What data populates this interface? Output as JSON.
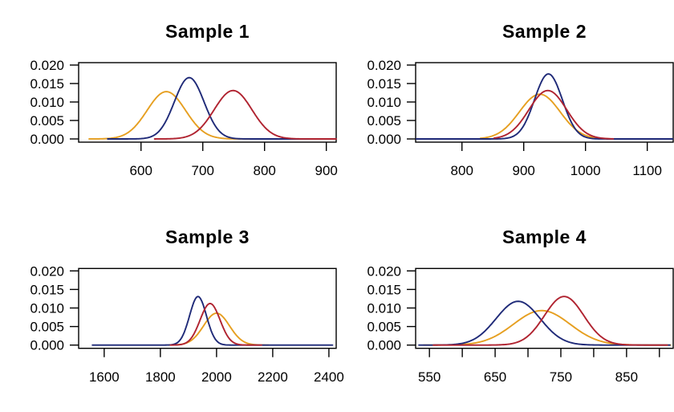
{
  "figure": {
    "background": "#ffffff",
    "grid": "2x2",
    "legend": "none"
  },
  "colors": {
    "navy": "#1F2A78",
    "red": "#B02330",
    "orange": "#E69F20",
    "axis": "#000000"
  },
  "chart_data": [
    {
      "type": "line",
      "title": "Sample 1",
      "xlabel": "",
      "ylabel": "",
      "xlim": [
        499,
        916
      ],
      "ylim": [
        0,
        0.02
      ],
      "grid": false,
      "xticks": [
        600,
        700,
        800,
        900
      ],
      "xtick_labels": [
        "600",
        "700",
        "800",
        "900"
      ],
      "yticks": [
        0,
        0.005,
        0.01,
        0.015,
        0.02
      ],
      "ytick_labels": [
        "0.000",
        "0.005",
        "0.010",
        "0.015",
        "0.020"
      ],
      "series": [
        {
          "name": "orange",
          "color": "#E69F20",
          "mean": 641,
          "sd": 31,
          "peak": 0.0128,
          "range": [
            516,
            812
          ]
        },
        {
          "name": "navy",
          "color": "#1F2A78",
          "mean": 678,
          "sd": 24,
          "peak": 0.0166,
          "range": [
            546,
            908
          ]
        },
        {
          "name": "red",
          "color": "#B02330",
          "mean": 749,
          "sd": 30.5,
          "peak": 0.0131,
          "range": [
            622,
            916
          ]
        }
      ]
    },
    {
      "type": "line",
      "title": "Sample 2",
      "xlabel": "",
      "ylabel": "",
      "xlim": [
        725,
        1142
      ],
      "ylim": [
        0,
        0.02
      ],
      "grid": false,
      "xticks": [
        800,
        900,
        1000,
        1100
      ],
      "xtick_labels": [
        "800",
        "900",
        "1000",
        "1100"
      ],
      "yticks": [
        0,
        0.005,
        0.01,
        0.015,
        0.02
      ],
      "ytick_labels": [
        "0.000",
        "0.005",
        "0.010",
        "0.015",
        "0.020"
      ],
      "series": [
        {
          "name": "orange",
          "color": "#E69F20",
          "mean": 926,
          "sd": 33,
          "peak": 0.0121,
          "range": [
            830,
            1038
          ]
        },
        {
          "name": "navy",
          "color": "#1F2A78",
          "mean": 940,
          "sd": 22.5,
          "peak": 0.0176,
          "range": [
            726,
            1141
          ]
        },
        {
          "name": "red",
          "color": "#B02330",
          "mean": 939,
          "sd": 30.5,
          "peak": 0.0131,
          "range": [
            852,
            1045
          ]
        }
      ]
    },
    {
      "type": "line",
      "title": "Sample 3",
      "xlabel": "",
      "ylabel": "",
      "xlim": [
        1509,
        2426
      ],
      "ylim": [
        0,
        0.02
      ],
      "grid": false,
      "xticks": [
        1600,
        1800,
        2000,
        2200,
        2400
      ],
      "xtick_labels": [
        "1600",
        "1800",
        "2000",
        "2200",
        "2400"
      ],
      "yticks": [
        0,
        0.005,
        0.01,
        0.015,
        0.02
      ],
      "ytick_labels": [
        "0.000",
        "0.005",
        "0.010",
        "0.015",
        "0.020"
      ],
      "series": [
        {
          "name": "orange",
          "color": "#E69F20",
          "mean": 2000,
          "sd": 46,
          "peak": 0.0086,
          "range": [
            1830,
            2185
          ]
        },
        {
          "name": "navy",
          "color": "#1F2A78",
          "mean": 1934,
          "sd": 30,
          "peak": 0.0131,
          "range": [
            1558,
            2413
          ]
        },
        {
          "name": "red",
          "color": "#B02330",
          "mean": 1977,
          "sd": 35.5,
          "peak": 0.0112,
          "range": [
            1836,
            2160
          ]
        }
      ]
    },
    {
      "type": "line",
      "title": "Sample 4",
      "xlabel": "",
      "ylabel": "",
      "xlim": [
        529,
        921
      ],
      "ylim": [
        0,
        0.02
      ],
      "grid": false,
      "xticks": [
        550,
        600,
        650,
        700,
        750,
        800,
        850,
        900
      ],
      "xtick_labels": [
        "550",
        "",
        "650",
        "",
        "750",
        "",
        "850",
        ""
      ],
      "yticks": [
        0,
        0.005,
        0.01,
        0.015,
        0.02
      ],
      "ytick_labels": [
        "0.000",
        "0.005",
        "0.010",
        "0.015",
        "0.020"
      ],
      "series": [
        {
          "name": "orange",
          "color": "#E69F20",
          "mean": 721,
          "sd": 43,
          "peak": 0.0093,
          "range": [
            541,
            917
          ]
        },
        {
          "name": "navy",
          "color": "#1F2A78",
          "mean": 685,
          "sd": 33.5,
          "peak": 0.0118,
          "range": [
            534,
            916
          ]
        },
        {
          "name": "red",
          "color": "#B02330",
          "mean": 755,
          "sd": 30,
          "peak": 0.0131,
          "range": [
            556,
            912
          ]
        }
      ]
    }
  ]
}
